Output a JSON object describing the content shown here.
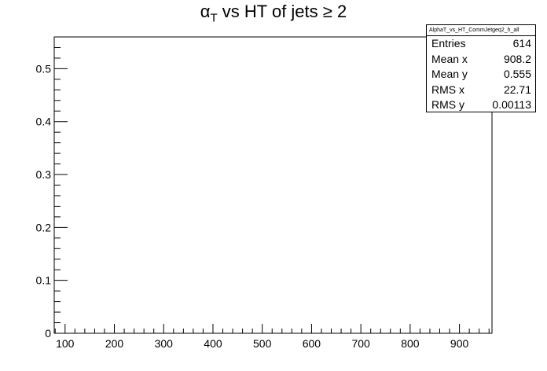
{
  "chart_data": {
    "type": "scatter",
    "title": "α_T vs HT of jets ≥ 2",
    "title_parts": {
      "alpha": "α",
      "sub": "T",
      "rest": " vs HT of jets ≥ 2"
    },
    "xlabel": "",
    "ylabel": "",
    "xlim": [
      78,
      966
    ],
    "ylim": [
      0,
      0.56
    ],
    "x_ticks": [
      100,
      200,
      300,
      400,
      500,
      600,
      700,
      800,
      900
    ],
    "y_ticks": [
      0,
      0.1,
      0.2,
      0.3,
      0.4,
      0.5
    ],
    "grid": false,
    "series": [],
    "stats_box": {
      "name": "AlphaT_vs_HT_CommJetgeq2_h_all",
      "entries": [
        {
          "label": "Entries",
          "value": "614"
        },
        {
          "label": "Mean x",
          "value": "908.2"
        },
        {
          "label": "Mean y",
          "value": "0.555"
        },
        {
          "label": "RMS x",
          "value": "22.71"
        },
        {
          "label": "RMS y",
          "value": "0.00113"
        }
      ]
    }
  }
}
